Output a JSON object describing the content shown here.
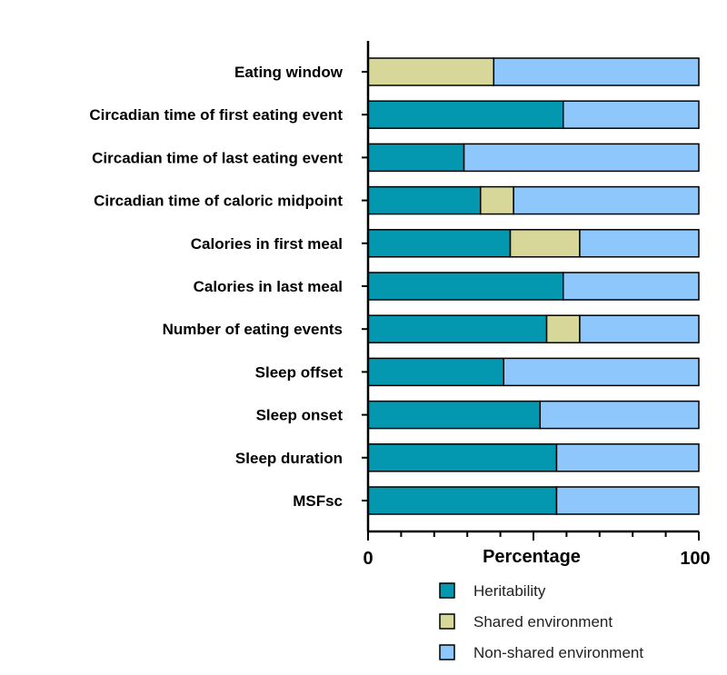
{
  "chart_data": {
    "type": "bar",
    "orientation": "horizontal",
    "stacked": true,
    "categories": [
      "Eating window",
      "Circadian time of first eating event",
      "Circadian time of last eating event",
      "Circadian time of caloric midpoint ",
      "Calories in first meal",
      "Calories in last meal",
      "Number of eating events",
      "Sleep offset",
      "Sleep onset",
      "Sleep duration",
      "MSFsc"
    ],
    "series": [
      {
        "name": "Heritability",
        "color": "#0397b0",
        "values": [
          0,
          59,
          29,
          34,
          43,
          59,
          54,
          41,
          52,
          57,
          57
        ]
      },
      {
        "name": "Shared environment",
        "color": "#d8d79a",
        "values": [
          38,
          0,
          0,
          10,
          21,
          0,
          10,
          0,
          0,
          0,
          0
        ]
      },
      {
        "name": "Non-shared environment",
        "color": "#8ec7fb",
        "values": [
          62,
          41,
          71,
          56,
          36,
          41,
          36,
          59,
          48,
          43,
          43
        ]
      }
    ],
    "xlabel": "Percentage",
    "xlim": [
      0,
      100
    ],
    "xticks": [
      "0",
      "100"
    ],
    "grid": false,
    "legend_position": "bottom-right"
  }
}
